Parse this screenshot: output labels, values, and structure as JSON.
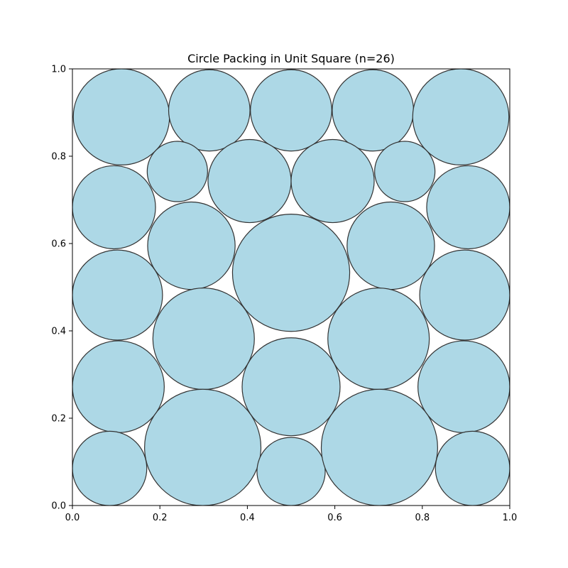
{
  "chart_data": {
    "type": "scatter",
    "title": "Circle Packing in Unit Square (n=26)",
    "xlabel": "",
    "ylabel": "",
    "xlim": [
      0.0,
      1.0
    ],
    "ylim": [
      0.0,
      1.0
    ],
    "grid": false,
    "x_ticks": [
      "0.0",
      "0.2",
      "0.4",
      "0.6",
      "0.8",
      "1.0"
    ],
    "y_ticks": [
      "0.0",
      "0.2",
      "0.4",
      "0.6",
      "0.8",
      "1.0"
    ],
    "fill_color": "#add8e6",
    "edge_color": "#333333",
    "circles": [
      {
        "cx": 0.112,
        "cy": 0.89,
        "r": 0.11
      },
      {
        "cx": 0.313,
        "cy": 0.905,
        "r": 0.093
      },
      {
        "cx": 0.5,
        "cy": 0.905,
        "r": 0.093
      },
      {
        "cx": 0.687,
        "cy": 0.905,
        "r": 0.093
      },
      {
        "cx": 0.888,
        "cy": 0.89,
        "r": 0.11
      },
      {
        "cx": 0.24,
        "cy": 0.765,
        "r": 0.069
      },
      {
        "cx": 0.405,
        "cy": 0.743,
        "r": 0.095
      },
      {
        "cx": 0.595,
        "cy": 0.743,
        "r": 0.095
      },
      {
        "cx": 0.76,
        "cy": 0.765,
        "r": 0.069
      },
      {
        "cx": 0.095,
        "cy": 0.683,
        "r": 0.095
      },
      {
        "cx": 0.905,
        "cy": 0.683,
        "r": 0.095
      },
      {
        "cx": 0.272,
        "cy": 0.595,
        "r": 0.1
      },
      {
        "cx": 0.5,
        "cy": 0.533,
        "r": 0.134
      },
      {
        "cx": 0.728,
        "cy": 0.595,
        "r": 0.1
      },
      {
        "cx": 0.103,
        "cy": 0.482,
        "r": 0.103
      },
      {
        "cx": 0.897,
        "cy": 0.482,
        "r": 0.103
      },
      {
        "cx": 0.3,
        "cy": 0.382,
        "r": 0.116
      },
      {
        "cx": 0.7,
        "cy": 0.382,
        "r": 0.116
      },
      {
        "cx": 0.105,
        "cy": 0.272,
        "r": 0.105
      },
      {
        "cx": 0.5,
        "cy": 0.272,
        "r": 0.112
      },
      {
        "cx": 0.895,
        "cy": 0.272,
        "r": 0.105
      },
      {
        "cx": 0.085,
        "cy": 0.085,
        "r": 0.085
      },
      {
        "cx": 0.298,
        "cy": 0.133,
        "r": 0.133
      },
      {
        "cx": 0.5,
        "cy": 0.078,
        "r": 0.078
      },
      {
        "cx": 0.702,
        "cy": 0.133,
        "r": 0.133
      },
      {
        "cx": 0.915,
        "cy": 0.085,
        "r": 0.085
      }
    ]
  }
}
